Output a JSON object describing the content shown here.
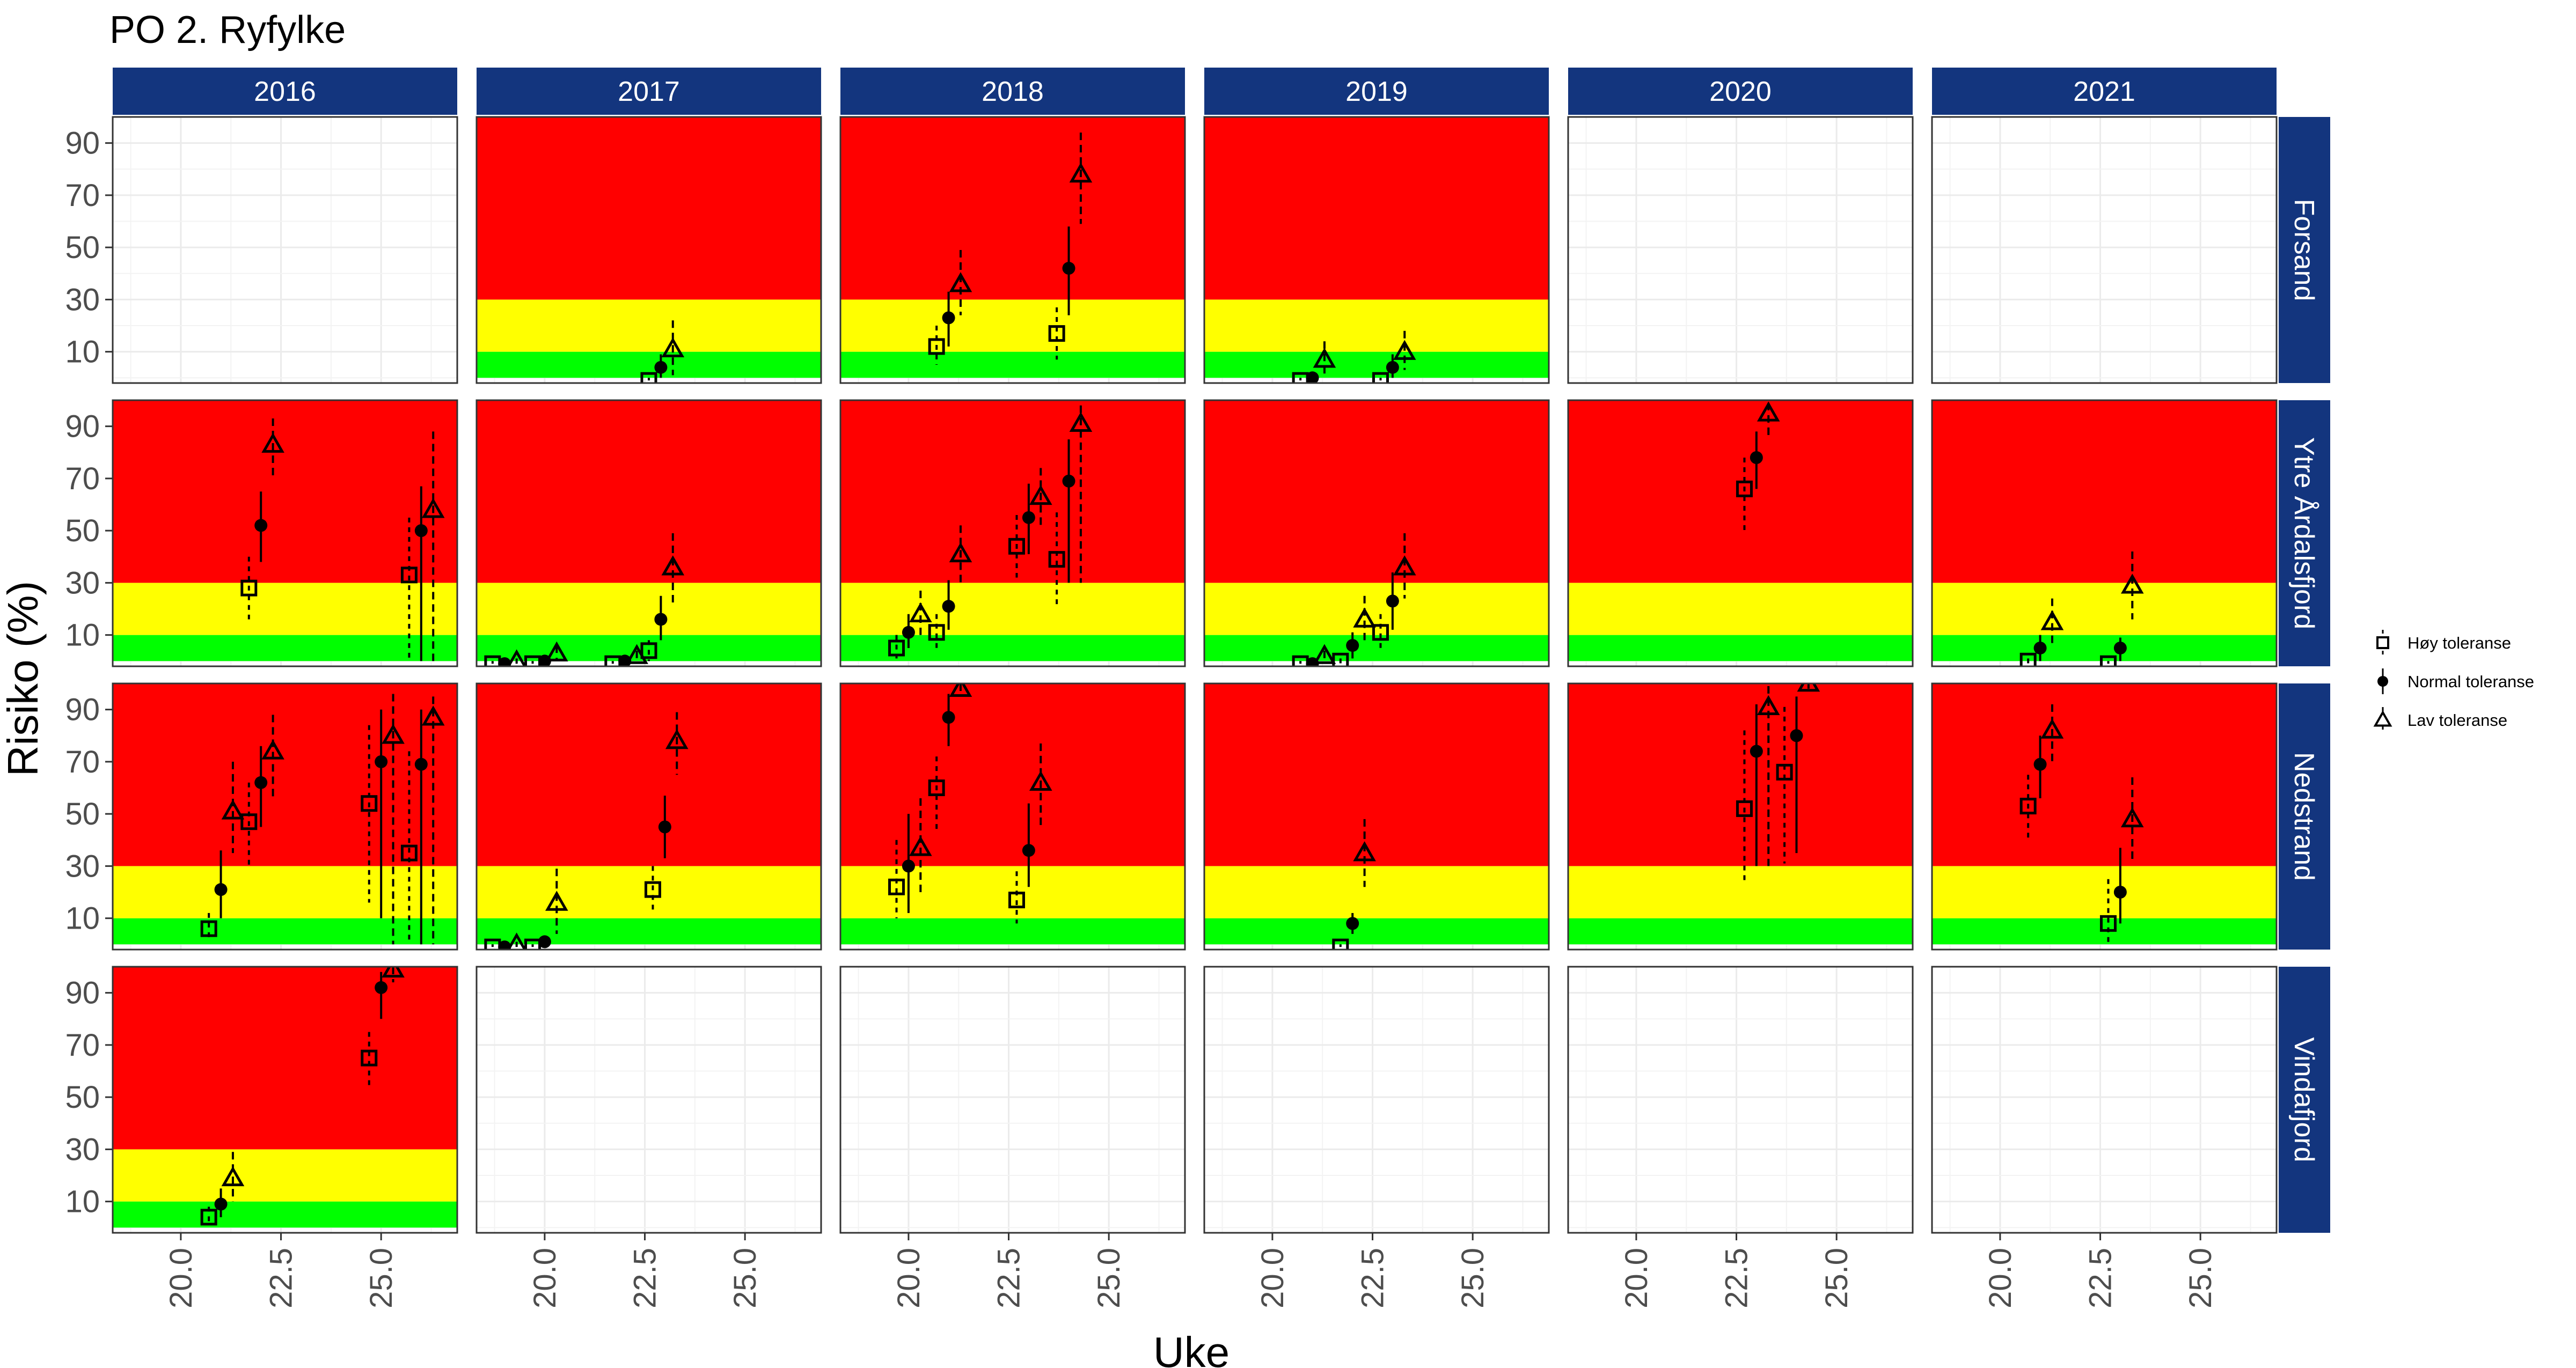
{
  "title": "PO 2. Ryfylke",
  "colors": {
    "red": "#ff0000",
    "yellow": "#ffff00",
    "green": "#00ff00",
    "strip": "#13357e",
    "grid": "#ebebeb",
    "panel_border": "#333333"
  },
  "chart_data": {
    "type": "scatter",
    "title": "PO 2. Ryfylke",
    "xlabel": "Uke",
    "ylabel": "Risiko (%)",
    "xlim": [
      18.3,
      26.9
    ],
    "ylim": [
      -2,
      100
    ],
    "x_ticks": [
      "20.0",
      "22.5",
      "25.0"
    ],
    "x_tick_values": [
      20.0,
      22.5,
      25.0
    ],
    "y_ticks": [
      "10",
      "30",
      "50",
      "70",
      "90"
    ],
    "y_tick_values": [
      10,
      30,
      50,
      70,
      90
    ],
    "risk_bands": [
      {
        "color": "green",
        "from": 0,
        "to": 10
      },
      {
        "color": "yellow",
        "from": 10,
        "to": 30
      },
      {
        "color": "red",
        "from": 30,
        "to": 100
      }
    ],
    "years": [
      "2016",
      "2017",
      "2018",
      "2019",
      "2020",
      "2021"
    ],
    "locations": [
      "Forsand",
      "Ytre Årdalsfjord",
      "Nedstrand",
      "Vindafjord"
    ],
    "legend": [
      {
        "key": "hoy",
        "label": "Høy toleranse"
      },
      {
        "key": "normal",
        "label": "Normal toleranse"
      },
      {
        "key": "lav",
        "label": "Lav toleranse"
      }
    ],
    "panels": [
      {
        "location": "Forsand",
        "year": "2016",
        "bands": false,
        "points": []
      },
      {
        "location": "Forsand",
        "year": "2017",
        "bands": true,
        "points": [
          {
            "s": "hoy",
            "x": 22.6,
            "y": -1,
            "lo": -1,
            "hi": 0
          },
          {
            "s": "normal",
            "x": 22.9,
            "y": 4,
            "lo": 0,
            "hi": 9
          },
          {
            "s": "lav",
            "x": 23.2,
            "y": 11,
            "lo": 1,
            "hi": 22
          }
        ]
      },
      {
        "location": "Forsand",
        "year": "2018",
        "bands": true,
        "points": [
          {
            "s": "hoy",
            "x": 20.7,
            "y": 12,
            "lo": 5,
            "hi": 20
          },
          {
            "s": "normal",
            "x": 21.0,
            "y": 23,
            "lo": 12,
            "hi": 33
          },
          {
            "s": "lav",
            "x": 21.3,
            "y": 36,
            "lo": 24,
            "hi": 49
          },
          {
            "s": "hoy",
            "x": 23.7,
            "y": 17,
            "lo": 7,
            "hi": 27
          },
          {
            "s": "normal",
            "x": 24.0,
            "y": 42,
            "lo": 24,
            "hi": 58
          },
          {
            "s": "lav",
            "x": 24.3,
            "y": 78,
            "lo": 59,
            "hi": 94
          }
        ]
      },
      {
        "location": "Forsand",
        "year": "2019",
        "bands": true,
        "points": [
          {
            "s": "hoy",
            "x": 20.7,
            "y": -1,
            "lo": -1,
            "hi": 0
          },
          {
            "s": "normal",
            "x": 21.0,
            "y": 0,
            "lo": -1,
            "hi": 1
          },
          {
            "s": "lav",
            "x": 21.3,
            "y": 7,
            "lo": 1,
            "hi": 14
          },
          {
            "s": "hoy",
            "x": 22.7,
            "y": -1,
            "lo": -1,
            "hi": 0
          },
          {
            "s": "normal",
            "x": 23.0,
            "y": 4,
            "lo": 0,
            "hi": 9
          },
          {
            "s": "lav",
            "x": 23.3,
            "y": 10,
            "lo": 3,
            "hi": 18
          }
        ]
      },
      {
        "location": "Forsand",
        "year": "2020",
        "bands": false,
        "points": []
      },
      {
        "location": "Forsand",
        "year": "2021",
        "bands": false,
        "points": []
      },
      {
        "location": "Ytre Årdalsfjord",
        "year": "2016",
        "bands": true,
        "points": [
          {
            "s": "hoy",
            "x": 21.7,
            "y": 28,
            "lo": 16,
            "hi": 40
          },
          {
            "s": "normal",
            "x": 22.0,
            "y": 52,
            "lo": 38,
            "hi": 65
          },
          {
            "s": "lav",
            "x": 22.3,
            "y": 83,
            "lo": 70,
            "hi": 93
          },
          {
            "s": "hoy",
            "x": 25.7,
            "y": 33,
            "lo": 0,
            "hi": 55
          },
          {
            "s": "normal",
            "x": 26.0,
            "y": 50,
            "lo": 0,
            "hi": 67
          },
          {
            "s": "lav",
            "x": 26.3,
            "y": 58,
            "lo": 0,
            "hi": 88
          }
        ]
      },
      {
        "location": "Ytre Årdalsfjord",
        "year": "2017",
        "bands": true,
        "points": [
          {
            "s": "hoy",
            "x": 18.7,
            "y": -1,
            "lo": -1,
            "hi": 0
          },
          {
            "s": "normal",
            "x": 19.0,
            "y": -1,
            "lo": -1,
            "hi": 0
          },
          {
            "s": "lav",
            "x": 19.3,
            "y": 0,
            "lo": -1,
            "hi": 1
          },
          {
            "s": "hoy",
            "x": 19.7,
            "y": -1,
            "lo": -1,
            "hi": 0
          },
          {
            "s": "normal",
            "x": 20.0,
            "y": 0,
            "lo": -1,
            "hi": 1
          },
          {
            "s": "lav",
            "x": 20.3,
            "y": 3,
            "lo": 0,
            "hi": 6
          },
          {
            "s": "hoy",
            "x": 21.7,
            "y": -1,
            "lo": -1,
            "hi": 0
          },
          {
            "s": "normal",
            "x": 22.0,
            "y": 0,
            "lo": -1,
            "hi": 1
          },
          {
            "s": "lav",
            "x": 22.3,
            "y": 2,
            "lo": 0,
            "hi": 4
          },
          {
            "s": "hoy",
            "x": 22.6,
            "y": 4,
            "lo": 0,
            "hi": 8
          },
          {
            "s": "normal",
            "x": 22.9,
            "y": 16,
            "lo": 8,
            "hi": 25
          },
          {
            "s": "lav",
            "x": 23.2,
            "y": 36,
            "lo": 22,
            "hi": 49
          }
        ]
      },
      {
        "location": "Ytre Årdalsfjord",
        "year": "2018",
        "bands": true,
        "points": [
          {
            "s": "hoy",
            "x": 19.7,
            "y": 5,
            "lo": 1,
            "hi": 10
          },
          {
            "s": "normal",
            "x": 20.0,
            "y": 11,
            "lo": 5,
            "hi": 18
          },
          {
            "s": "lav",
            "x": 20.3,
            "y": 18,
            "lo": 10,
            "hi": 27
          },
          {
            "s": "hoy",
            "x": 20.7,
            "y": 11,
            "lo": 5,
            "hi": 18
          },
          {
            "s": "normal",
            "x": 21.0,
            "y": 21,
            "lo": 12,
            "hi": 31
          },
          {
            "s": "lav",
            "x": 21.3,
            "y": 41,
            "lo": 29,
            "hi": 52
          },
          {
            "s": "hoy",
            "x": 22.7,
            "y": 44,
            "lo": 32,
            "hi": 56
          },
          {
            "s": "normal",
            "x": 23.0,
            "y": 55,
            "lo": 41,
            "hi": 68
          },
          {
            "s": "lav",
            "x": 23.3,
            "y": 63,
            "lo": 52,
            "hi": 74
          },
          {
            "s": "hoy",
            "x": 23.7,
            "y": 39,
            "lo": 20,
            "hi": 57
          },
          {
            "s": "normal",
            "x": 24.0,
            "y": 69,
            "lo": 30,
            "hi": 85
          },
          {
            "s": "lav",
            "x": 24.3,
            "y": 91,
            "lo": 30,
            "hi": 98
          }
        ]
      },
      {
        "location": "Ytre Årdalsfjord",
        "year": "2019",
        "bands": true,
        "points": [
          {
            "s": "hoy",
            "x": 20.7,
            "y": -1,
            "lo": -1,
            "hi": 0
          },
          {
            "s": "normal",
            "x": 21.0,
            "y": -1,
            "lo": -1,
            "hi": 0
          },
          {
            "s": "lav",
            "x": 21.3,
            "y": 2,
            "lo": 0,
            "hi": 4
          },
          {
            "s": "hoy",
            "x": 21.7,
            "y": 0,
            "lo": -1,
            "hi": 1
          },
          {
            "s": "normal",
            "x": 22.0,
            "y": 6,
            "lo": 1,
            "hi": 11
          },
          {
            "s": "lav",
            "x": 22.3,
            "y": 16,
            "lo": 8,
            "hi": 25
          },
          {
            "s": "hoy",
            "x": 22.7,
            "y": 11,
            "lo": 4,
            "hi": 18
          },
          {
            "s": "normal",
            "x": 23.0,
            "y": 23,
            "lo": 12,
            "hi": 34
          },
          {
            "s": "lav",
            "x": 23.3,
            "y": 36,
            "lo": 24,
            "hi": 49
          }
        ]
      },
      {
        "location": "Ytre Årdalsfjord",
        "year": "2020",
        "bands": true,
        "points": [
          {
            "s": "hoy",
            "x": 22.7,
            "y": 66,
            "lo": 50,
            "hi": 78
          },
          {
            "s": "normal",
            "x": 23.0,
            "y": 78,
            "lo": 66,
            "hi": 88
          },
          {
            "s": "lav",
            "x": 23.3,
            "y": 95,
            "lo": 86,
            "hi": 99
          }
        ]
      },
      {
        "location": "Ytre Årdalsfjord",
        "year": "2021",
        "bands": true,
        "points": [
          {
            "s": "hoy",
            "x": 20.7,
            "y": 0,
            "lo": -1,
            "hi": 1
          },
          {
            "s": "normal",
            "x": 21.0,
            "y": 5,
            "lo": 0,
            "hi": 10
          },
          {
            "s": "lav",
            "x": 21.3,
            "y": 15,
            "lo": 6,
            "hi": 24
          },
          {
            "s": "hoy",
            "x": 22.7,
            "y": -1,
            "lo": -1,
            "hi": 0
          },
          {
            "s": "normal",
            "x": 23.0,
            "y": 5,
            "lo": 0,
            "hi": 9
          },
          {
            "s": "lav",
            "x": 23.3,
            "y": 29,
            "lo": 16,
            "hi": 42
          }
        ]
      },
      {
        "location": "Nedstrand",
        "year": "2016",
        "bands": true,
        "points": [
          {
            "s": "hoy",
            "x": 20.7,
            "y": 6,
            "lo": 1,
            "hi": 12
          },
          {
            "s": "normal",
            "x": 21.0,
            "y": 21,
            "lo": 10,
            "hi": 36
          },
          {
            "s": "lav",
            "x": 21.3,
            "y": 51,
            "lo": 35,
            "hi": 70
          },
          {
            "s": "hoy",
            "x": 21.7,
            "y": 47,
            "lo": 29,
            "hi": 62
          },
          {
            "s": "normal",
            "x": 22.0,
            "y": 62,
            "lo": 45,
            "hi": 76
          },
          {
            "s": "lav",
            "x": 22.3,
            "y": 74,
            "lo": 56,
            "hi": 88
          },
          {
            "s": "hoy",
            "x": 24.7,
            "y": 54,
            "lo": 16,
            "hi": 84
          },
          {
            "s": "normal",
            "x": 25.0,
            "y": 70,
            "lo": 10,
            "hi": 90
          },
          {
            "s": "lav",
            "x": 25.3,
            "y": 80,
            "lo": 0,
            "hi": 96
          },
          {
            "s": "hoy",
            "x": 25.7,
            "y": 35,
            "lo": 0,
            "hi": 74
          },
          {
            "s": "normal",
            "x": 26.0,
            "y": 69,
            "lo": 0,
            "hi": 90
          },
          {
            "s": "lav",
            "x": 26.3,
            "y": 87,
            "lo": 0,
            "hi": 95
          }
        ]
      },
      {
        "location": "Nedstrand",
        "year": "2017",
        "bands": true,
        "points": [
          {
            "s": "hoy",
            "x": 18.7,
            "y": -1,
            "lo": -1,
            "hi": 0
          },
          {
            "s": "normal",
            "x": 19.0,
            "y": -1,
            "lo": -1,
            "hi": 0
          },
          {
            "s": "lav",
            "x": 19.3,
            "y": 0,
            "lo": -1,
            "hi": 1
          },
          {
            "s": "hoy",
            "x": 19.7,
            "y": -1,
            "lo": -1,
            "hi": 0
          },
          {
            "s": "normal",
            "x": 20.0,
            "y": 1,
            "lo": -1,
            "hi": 3
          },
          {
            "s": "lav",
            "x": 20.3,
            "y": 16,
            "lo": 4,
            "hi": 29
          },
          {
            "s": "hoy",
            "x": 22.7,
            "y": 21,
            "lo": 13,
            "hi": 30
          },
          {
            "s": "normal",
            "x": 23.0,
            "y": 45,
            "lo": 33,
            "hi": 57
          },
          {
            "s": "lav",
            "x": 23.3,
            "y": 78,
            "lo": 65,
            "hi": 89
          }
        ]
      },
      {
        "location": "Nedstrand",
        "year": "2018",
        "bands": true,
        "points": [
          {
            "s": "hoy",
            "x": 19.7,
            "y": 22,
            "lo": 10,
            "hi": 40
          },
          {
            "s": "normal",
            "x": 20.0,
            "y": 30,
            "lo": 12,
            "hi": 50
          },
          {
            "s": "lav",
            "x": 20.3,
            "y": 37,
            "lo": 20,
            "hi": 56
          },
          {
            "s": "hoy",
            "x": 20.7,
            "y": 60,
            "lo": 44,
            "hi": 72
          },
          {
            "s": "normal",
            "x": 21.0,
            "y": 87,
            "lo": 76,
            "hi": 96
          },
          {
            "s": "lav",
            "x": 21.3,
            "y": 98,
            "lo": 95,
            "hi": 100
          },
          {
            "s": "hoy",
            "x": 22.7,
            "y": 17,
            "lo": 8,
            "hi": 28
          },
          {
            "s": "normal",
            "x": 23.0,
            "y": 36,
            "lo": 22,
            "hi": 54
          },
          {
            "s": "lav",
            "x": 23.3,
            "y": 62,
            "lo": 44,
            "hi": 77
          }
        ]
      },
      {
        "location": "Nedstrand",
        "year": "2019",
        "bands": true,
        "points": [
          {
            "s": "hoy",
            "x": 21.7,
            "y": -1,
            "lo": -1,
            "hi": 0
          },
          {
            "s": "normal",
            "x": 22.0,
            "y": 8,
            "lo": 4,
            "hi": 12
          },
          {
            "s": "lav",
            "x": 22.3,
            "y": 35,
            "lo": 22,
            "hi": 48
          }
        ]
      },
      {
        "location": "Nedstrand",
        "year": "2020",
        "bands": true,
        "points": [
          {
            "s": "hoy",
            "x": 22.7,
            "y": 52,
            "lo": 24,
            "hi": 82
          },
          {
            "s": "normal",
            "x": 23.0,
            "y": 74,
            "lo": 30,
            "hi": 92
          },
          {
            "s": "lav",
            "x": 23.3,
            "y": 91,
            "lo": 30,
            "hi": 99
          },
          {
            "s": "hoy",
            "x": 23.7,
            "y": 66,
            "lo": 31,
            "hi": 91
          },
          {
            "s": "normal",
            "x": 24.0,
            "y": 80,
            "lo": 35,
            "hi": 95
          },
          {
            "s": "lav",
            "x": 24.3,
            "y": 100,
            "lo": 98,
            "hi": 100
          }
        ]
      },
      {
        "location": "Nedstrand",
        "year": "2021",
        "bands": true,
        "points": [
          {
            "s": "hoy",
            "x": 20.7,
            "y": 53,
            "lo": 40,
            "hi": 65
          },
          {
            "s": "normal",
            "x": 21.0,
            "y": 69,
            "lo": 56,
            "hi": 80
          },
          {
            "s": "lav",
            "x": 21.3,
            "y": 82,
            "lo": 70,
            "hi": 92
          },
          {
            "s": "hoy",
            "x": 22.7,
            "y": 8,
            "lo": 0,
            "hi": 25
          },
          {
            "s": "normal",
            "x": 23.0,
            "y": 20,
            "lo": 8,
            "hi": 37
          },
          {
            "s": "lav",
            "x": 23.3,
            "y": 48,
            "lo": 32,
            "hi": 64
          }
        ]
      },
      {
        "location": "Vindafjord",
        "year": "2016",
        "bands": true,
        "points": [
          {
            "s": "hoy",
            "x": 20.7,
            "y": 4,
            "lo": 1,
            "hi": 8
          },
          {
            "s": "normal",
            "x": 21.0,
            "y": 9,
            "lo": 4,
            "hi": 15
          },
          {
            "s": "lav",
            "x": 21.3,
            "y": 19,
            "lo": 10,
            "hi": 29
          },
          {
            "s": "hoy",
            "x": 24.7,
            "y": 65,
            "lo": 54,
            "hi": 75
          },
          {
            "s": "normal",
            "x": 25.0,
            "y": 92,
            "lo": 80,
            "hi": 98
          },
          {
            "s": "lav",
            "x": 25.3,
            "y": 99,
            "lo": 94,
            "hi": 100
          }
        ]
      },
      {
        "location": "Vindafjord",
        "year": "2017",
        "bands": false,
        "points": []
      },
      {
        "location": "Vindafjord",
        "year": "2018",
        "bands": false,
        "points": []
      },
      {
        "location": "Vindafjord",
        "year": "2019",
        "bands": false,
        "points": []
      },
      {
        "location": "Vindafjord",
        "year": "2020",
        "bands": false,
        "points": []
      },
      {
        "location": "Vindafjord",
        "year": "2021",
        "bands": false,
        "points": []
      }
    ]
  }
}
